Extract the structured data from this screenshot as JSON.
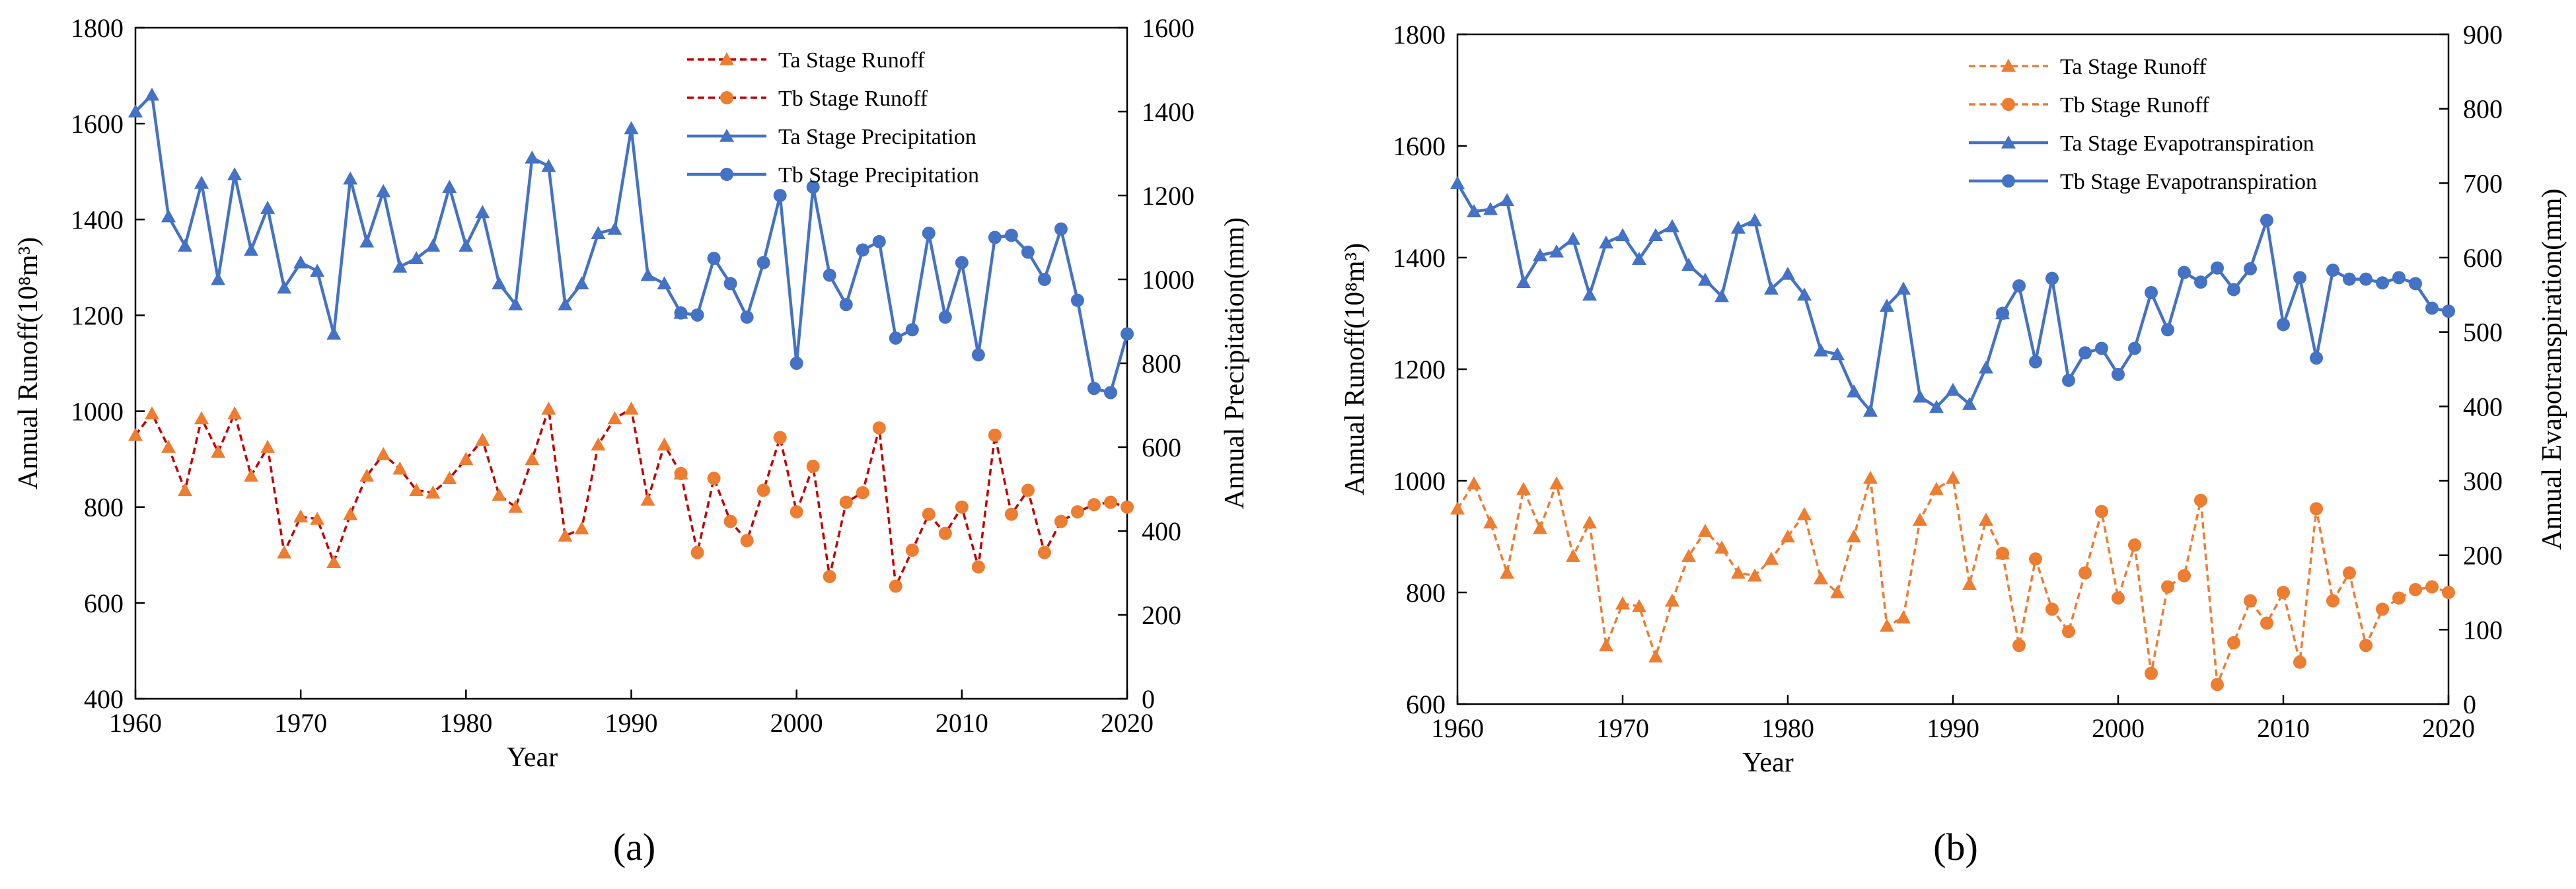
{
  "chart_data": [
    {
      "type": "line",
      "panel_label": "(a)",
      "xlabel": "Year",
      "ylabel_left": "Annual Runoff(10⁸m³)",
      "ylabel_right": "Annual Precipitation(mm)",
      "xlim": [
        1960,
        2020
      ],
      "xticks": [
        1960,
        1970,
        1980,
        1990,
        2000,
        2010,
        2020
      ],
      "ylim_left": [
        400,
        1800
      ],
      "yticks_left": [
        400,
        600,
        800,
        1000,
        1200,
        1400,
        1600,
        1800
      ],
      "ylim_right": [
        0,
        1600
      ],
      "yticks_right": [
        0,
        200,
        400,
        600,
        800,
        1000,
        1200,
        1400,
        1600
      ],
      "legend_position": "top-right",
      "grid": false,
      "series": [
        {
          "name": "Ta Stage Runoff",
          "axis": "left",
          "color": "#C00000",
          "marker_color": "#ED7D31",
          "dash": true,
          "marker": "triangle",
          "x": [
            1960,
            1961,
            1962,
            1963,
            1964,
            1965,
            1966,
            1967,
            1968,
            1969,
            1970,
            1971,
            1972,
            1973,
            1974,
            1975,
            1976,
            1977,
            1978,
            1979,
            1980,
            1981,
            1982,
            1983,
            1984,
            1985,
            1986,
            1987,
            1988,
            1989,
            1990,
            1991,
            1992,
            1993
          ],
          "y": [
            950,
            995,
            925,
            835,
            985,
            915,
            995,
            865,
            925,
            705,
            780,
            775,
            685,
            785,
            865,
            910,
            880,
            835,
            830,
            860,
            900,
            940,
            825,
            800,
            900,
            1005,
            740,
            755,
            930,
            985,
            1005,
            815,
            930,
            870
          ]
        },
        {
          "name": "Tb Stage Runoff",
          "axis": "left",
          "color": "#C00000",
          "marker_color": "#ED7D31",
          "dash": true,
          "marker": "circle",
          "x": [
            1993,
            1994,
            1995,
            1996,
            1997,
            1998,
            1999,
            2000,
            2001,
            2002,
            2003,
            2004,
            2005,
            2006,
            2007,
            2008,
            2009,
            2010,
            2011,
            2012,
            2013,
            2014,
            2015,
            2016,
            2017,
            2018,
            2019,
            2020
          ],
          "y": [
            870,
            705,
            860,
            770,
            730,
            835,
            945,
            790,
            885,
            655,
            810,
            830,
            965,
            635,
            710,
            785,
            745,
            800,
            675,
            950,
            785,
            835,
            705,
            770,
            790,
            805,
            810,
            800
          ]
        },
        {
          "name": "Ta Stage Precipitation",
          "axis": "right",
          "color": "#4472C4",
          "marker_color": "#4472C4",
          "dash": false,
          "marker": "triangle",
          "x": [
            1960,
            1961,
            1962,
            1963,
            1964,
            1965,
            1966,
            1967,
            1968,
            1969,
            1970,
            1971,
            1972,
            1973,
            1974,
            1975,
            1976,
            1977,
            1978,
            1979,
            1980,
            1981,
            1982,
            1983,
            1984,
            1985,
            1986,
            1987,
            1988,
            1989,
            1990,
            1991,
            1992,
            1993
          ],
          "y": [
            1400,
            1440,
            1150,
            1080,
            1230,
            1000,
            1250,
            1070,
            1170,
            980,
            1040,
            1020,
            870,
            1240,
            1090,
            1210,
            1030,
            1050,
            1080,
            1220,
            1080,
            1160,
            990,
            940,
            1290,
            1270,
            940,
            990,
            1110,
            1120,
            1360,
            1010,
            990,
            920
          ]
        },
        {
          "name": "Tb Stage Precipitation",
          "axis": "right",
          "color": "#4472C4",
          "marker_color": "#4472C4",
          "dash": false,
          "marker": "circle",
          "x": [
            1993,
            1994,
            1995,
            1996,
            1997,
            1998,
            1999,
            2000,
            2001,
            2002,
            2003,
            2004,
            2005,
            2006,
            2007,
            2008,
            2009,
            2010,
            2011,
            2012,
            2013,
            2014,
            2015,
            2016,
            2017,
            2018,
            2019,
            2020
          ],
          "y": [
            920,
            915,
            1050,
            990,
            910,
            1040,
            1200,
            800,
            1220,
            1010,
            940,
            1070,
            1090,
            860,
            880,
            1110,
            910,
            1040,
            820,
            1100,
            1105,
            1065,
            1000,
            1120,
            950,
            740,
            730,
            870
          ]
        }
      ]
    },
    {
      "type": "line",
      "panel_label": "(b)",
      "xlabel": "Year",
      "ylabel_left": "Annual Runoff(10⁸m³)",
      "ylabel_right": "Annual Evapotranspiration(mm)",
      "xlim": [
        1960,
        2020
      ],
      "xticks": [
        1960,
        1970,
        1980,
        1990,
        2000,
        2010,
        2020
      ],
      "ylim_left": [
        600,
        1800
      ],
      "yticks_left": [
        600,
        800,
        1000,
        1200,
        1400,
        1600,
        1800
      ],
      "ylim_right": [
        0,
        900
      ],
      "yticks_right": [
        0,
        100,
        200,
        300,
        400,
        500,
        600,
        700,
        800,
        900
      ],
      "legend_position": "top-right",
      "grid": false,
      "series": [
        {
          "name": "Ta Stage Runoff",
          "axis": "left",
          "color": "#ED7D31",
          "marker_color": "#ED7D31",
          "dash": true,
          "marker": "triangle",
          "x": [
            1960,
            1961,
            1962,
            1963,
            1964,
            1965,
            1966,
            1967,
            1968,
            1969,
            1970,
            1971,
            1972,
            1973,
            1974,
            1975,
            1976,
            1977,
            1978,
            1979,
            1980,
            1981,
            1982,
            1983,
            1984,
            1985,
            1986,
            1987,
            1988,
            1989,
            1990,
            1991,
            1992,
            1993
          ],
          "y": [
            950,
            995,
            925,
            835,
            985,
            915,
            995,
            865,
            925,
            705,
            780,
            775,
            685,
            785,
            865,
            910,
            880,
            835,
            830,
            860,
            900,
            940,
            825,
            800,
            900,
            1005,
            740,
            755,
            930,
            985,
            1005,
            815,
            930,
            870
          ]
        },
        {
          "name": "Tb Stage Runoff",
          "axis": "left",
          "color": "#ED7D31",
          "marker_color": "#ED7D31",
          "dash": true,
          "marker": "circle",
          "x": [
            1993,
            1994,
            1995,
            1996,
            1997,
            1998,
            1999,
            2000,
            2001,
            2002,
            2003,
            2004,
            2005,
            2006,
            2007,
            2008,
            2009,
            2010,
            2011,
            2012,
            2013,
            2014,
            2015,
            2016,
            2017,
            2018,
            2019,
            2020
          ],
          "y": [
            870,
            705,
            860,
            770,
            730,
            835,
            945,
            790,
            885,
            655,
            810,
            830,
            965,
            635,
            710,
            785,
            745,
            800,
            675,
            950,
            785,
            835,
            705,
            770,
            790,
            805,
            810,
            800
          ]
        },
        {
          "name": "Ta Stage Evapotranspiration",
          "axis": "right",
          "color": "#4472C4",
          "marker_color": "#4472C4",
          "dash": false,
          "marker": "triangle",
          "x": [
            1960,
            1961,
            1962,
            1963,
            1964,
            1965,
            1966,
            1967,
            1968,
            1969,
            1970,
            1971,
            1972,
            1973,
            1974,
            1975,
            1976,
            1977,
            1978,
            1979,
            1980,
            1981,
            1982,
            1983,
            1984,
            1985,
            1986,
            1987,
            1988,
            1989,
            1990,
            1991,
            1992,
            1993
          ],
          "y": [
            700,
            662,
            665,
            677,
            567,
            603,
            608,
            625,
            550,
            620,
            630,
            598,
            630,
            642,
            590,
            570,
            548,
            640,
            650,
            558,
            578,
            550,
            475,
            470,
            420,
            394,
            535,
            558,
            413,
            399,
            422,
            403,
            452,
            525
          ]
        },
        {
          "name": "Tb Stage Evapotranspiration",
          "axis": "right",
          "color": "#4472C4",
          "marker_color": "#4472C4",
          "dash": false,
          "marker": "circle",
          "x": [
            1993,
            1994,
            1995,
            1996,
            1997,
            1998,
            1999,
            2000,
            2001,
            2002,
            2003,
            2004,
            2005,
            2006,
            2007,
            2008,
            2009,
            2010,
            2011,
            2012,
            2013,
            2014,
            2015,
            2016,
            2017,
            2018,
            2019,
            2020
          ],
          "y": [
            525,
            562,
            460,
            572,
            435,
            472,
            478,
            443,
            478,
            553,
            503,
            580,
            567,
            586,
            557,
            585,
            650,
            510,
            573,
            465,
            583,
            571,
            571,
            566,
            573,
            565,
            532,
            528
          ]
        }
      ]
    }
  ]
}
